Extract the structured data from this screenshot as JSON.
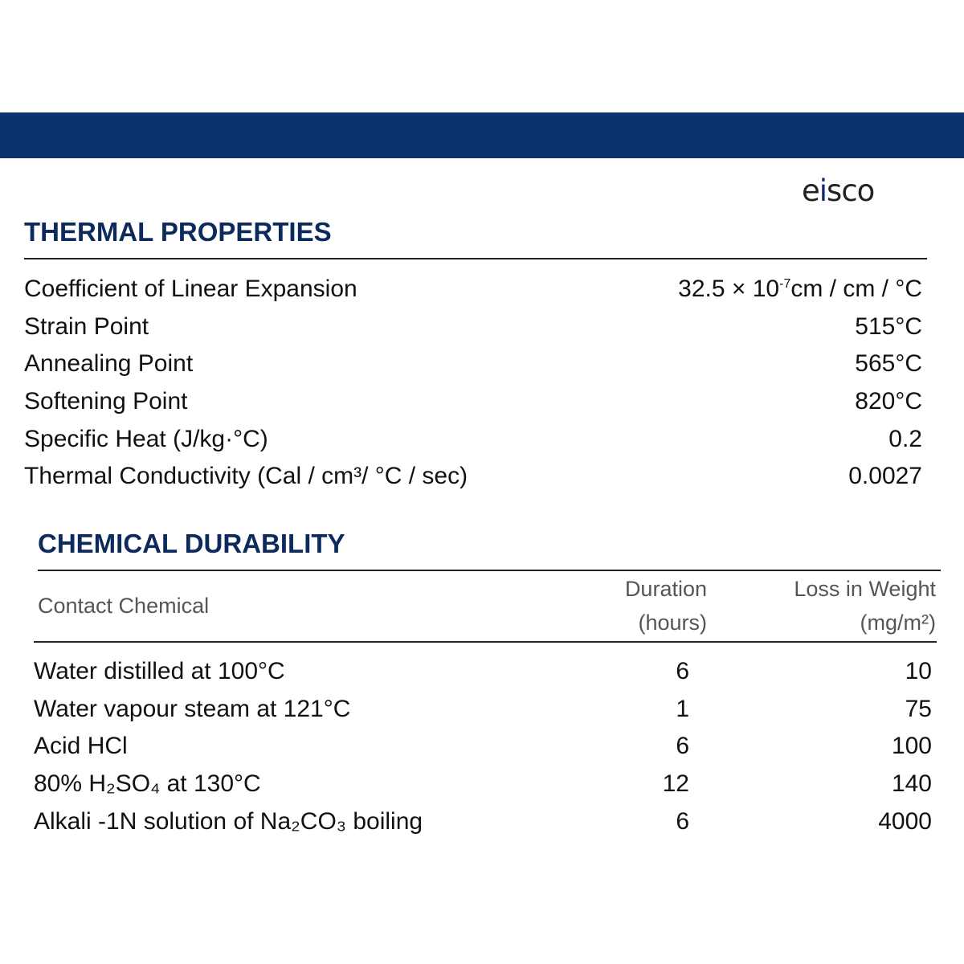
{
  "brand": {
    "logo_text": "eisco",
    "color": "#0a3370"
  },
  "thermal": {
    "title": "THERMAL PROPERTIES",
    "rows": [
      {
        "label": "Coefficient of Linear Expansion",
        "value_base": "32.5 × 10",
        "value_exp": "-7",
        "value_unit": "cm / cm / °C"
      },
      {
        "label": "Strain Point",
        "value": "515°C"
      },
      {
        "label": "Annealing Point",
        "value": "565°C"
      },
      {
        "label": "Softening Point",
        "value": "820°C"
      },
      {
        "label": "Specific Heat (J/kg·°C)",
        "value": "0.2"
      },
      {
        "label": "Thermal Conductivity (Cal / cm³/ °C / sec)",
        "value": "0.0027"
      }
    ]
  },
  "chemical": {
    "title": "CHEMICAL DURABILITY",
    "headers": {
      "chemical": "Contact Chemical",
      "duration_1": "Duration",
      "duration_2": "(hours)",
      "loss_1": "Loss in Weight",
      "loss_2": "(mg/m²)"
    },
    "rows": [
      {
        "chemical": "Water distilled at 100°C",
        "duration": "6",
        "loss": "10"
      },
      {
        "chemical": "Water vapour steam at 121°C",
        "duration": "1",
        "loss": "75"
      },
      {
        "chemical": "Acid HCl",
        "duration": "6",
        "loss": "100"
      },
      {
        "chemical": "80% H₂SO₄ at 130°C",
        "duration": "12",
        "loss": "140"
      },
      {
        "chemical": "Alkali -1N solution of Na₂CO₃ boiling",
        "duration": "6",
        "loss": "4000"
      }
    ]
  }
}
